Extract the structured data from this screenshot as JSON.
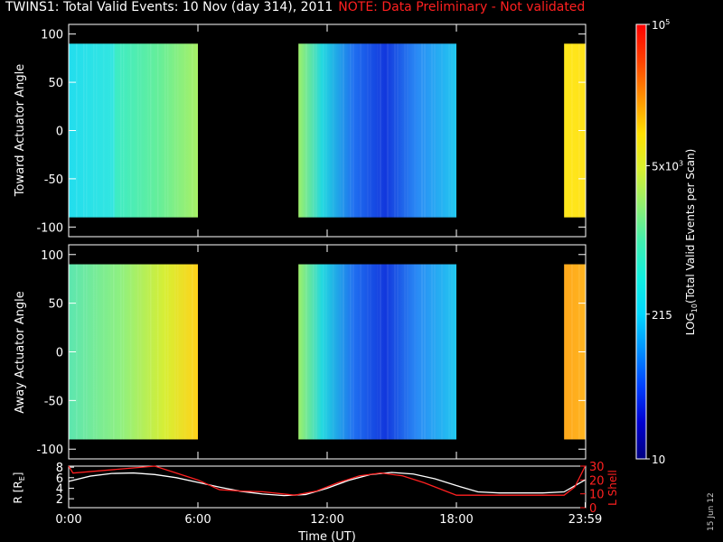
{
  "title": {
    "main": "TWINS1: Total Valid Events: 10 Nov (day 314), 2011",
    "note": "NOTE: Data Preliminary - Not validated"
  },
  "footer_stamp": "15 Jun 12",
  "chart_data": [
    {
      "type": "heatmap",
      "panel": "toward",
      "ylabel": "Toward Actuator Angle",
      "ylim": [
        -110,
        110
      ],
      "yticks": [
        "100",
        "50",
        "0",
        "-50",
        "-100"
      ],
      "data_y_range": [
        -90,
        90
      ],
      "segments": [
        {
          "start": "00:00",
          "end": "06:00",
          "gradient": [
            [
              0,
              "#22ddee"
            ],
            [
              0.35,
              "#33e6e0"
            ],
            [
              0.36,
              "#3cecc6"
            ],
            [
              0.7,
              "#66ee99"
            ],
            [
              1,
              "#a8f066"
            ]
          ]
        },
        {
          "start": "10:40",
          "end": "18:00",
          "gradient": [
            [
              0,
              "#9cf06a"
            ],
            [
              0.15,
              "#22d8e0"
            ],
            [
              0.35,
              "#1f6ff0"
            ],
            [
              0.55,
              "#1238dd"
            ],
            [
              0.75,
              "#2a8af5"
            ],
            [
              1,
              "#22c8f0"
            ]
          ]
        },
        {
          "start": "23:00",
          "end": "23:59",
          "gradient": [
            [
              0,
              "#ffe81a"
            ],
            [
              1,
              "#ffe21a"
            ]
          ]
        }
      ]
    },
    {
      "type": "heatmap",
      "panel": "away",
      "ylabel": "Away Actuator Angle",
      "ylim": [
        -110,
        110
      ],
      "yticks": [
        "100",
        "50",
        "0",
        "-50",
        "-100"
      ],
      "data_y_range": [
        -90,
        90
      ],
      "segments": [
        {
          "start": "00:00",
          "end": "06:00",
          "gradient": [
            [
              0,
              "#5ce6b0"
            ],
            [
              0.4,
              "#8ef080"
            ],
            [
              0.75,
              "#d8ee33"
            ],
            [
              1,
              "#ffd21a"
            ]
          ]
        },
        {
          "start": "10:40",
          "end": "18:00",
          "gradient": [
            [
              0,
              "#9cf06a"
            ],
            [
              0.15,
              "#22d8e0"
            ],
            [
              0.35,
              "#1f6ff0"
            ],
            [
              0.55,
              "#1238dd"
            ],
            [
              0.75,
              "#2a8af5"
            ],
            [
              1,
              "#22c8f0"
            ]
          ]
        },
        {
          "start": "23:00",
          "end": "23:59",
          "gradient": [
            [
              0,
              "#ffa81a"
            ],
            [
              1,
              "#ffb420"
            ]
          ]
        }
      ]
    },
    {
      "type": "line",
      "panel": "orbit",
      "ylabel_left": "R [R",
      "ylabel_left_sub": "E",
      "ylabel_left_close": "]",
      "ylabel_right": "L Shell",
      "yticks_left": [
        "8",
        "6",
        "4",
        "2"
      ],
      "yticks_right": [
        "30",
        "20",
        "10",
        "0"
      ],
      "xlabel": "Time (UT)",
      "xticks": [
        "0:00",
        "6:00",
        "12:00",
        "18:00",
        "23:59"
      ],
      "series": [
        {
          "axis": "left",
          "color": "#ffffff",
          "x": [
            0,
            1,
            2,
            3,
            4,
            5,
            6,
            7,
            8,
            9,
            10,
            11,
            12,
            13,
            14,
            15,
            16,
            17,
            18,
            19,
            20,
            21,
            22,
            23,
            23.98
          ],
          "y": [
            5.3,
            6.3,
            6.8,
            6.9,
            6.6,
            6.0,
            5.1,
            4.2,
            3.4,
            2.9,
            2.6,
            2.8,
            4.0,
            5.5,
            6.6,
            7.0,
            6.7,
            5.8,
            4.5,
            3.3,
            3.1,
            3.1,
            3.1,
            3.3,
            5.6
          ]
        },
        {
          "axis": "right",
          "color": "#ff2020",
          "x": [
            0,
            0.2,
            4,
            6,
            7,
            8,
            9,
            10.5,
            11.5,
            12.5,
            13.5,
            14.5,
            15.5,
            16.5,
            17.5,
            18,
            19,
            20,
            21,
            22,
            23,
            23.5,
            23.98
          ],
          "y": [
            30,
            25,
            30,
            20,
            13,
            12,
            11.5,
            9,
            12,
            18,
            23,
            25,
            23,
            18,
            12,
            9,
            9,
            9,
            9,
            9,
            9,
            15,
            30
          ]
        }
      ]
    }
  ],
  "colorbar": {
    "title": "LOG",
    "title_sub": "10",
    "title_rest": "(Total Valid Events per Scan)",
    "labels": [
      {
        "text": "10",
        "sup": "5",
        "value": 100000
      },
      {
        "text": "5x10",
        "sup": "3",
        "value": 5000
      },
      {
        "text": "215",
        "sup": "",
        "value": 215
      },
      {
        "text": "10",
        "sup": "",
        "value": 10
      }
    ],
    "range": [
      10,
      100000
    ],
    "stops": [
      "#000080",
      "#0000d0",
      "#0040ff",
      "#0090ff",
      "#00d8ff",
      "#10f0e0",
      "#40f0b0",
      "#90f070",
      "#d8f030",
      "#ffe000",
      "#ff9000",
      "#ff4000",
      "#ff0000"
    ]
  }
}
